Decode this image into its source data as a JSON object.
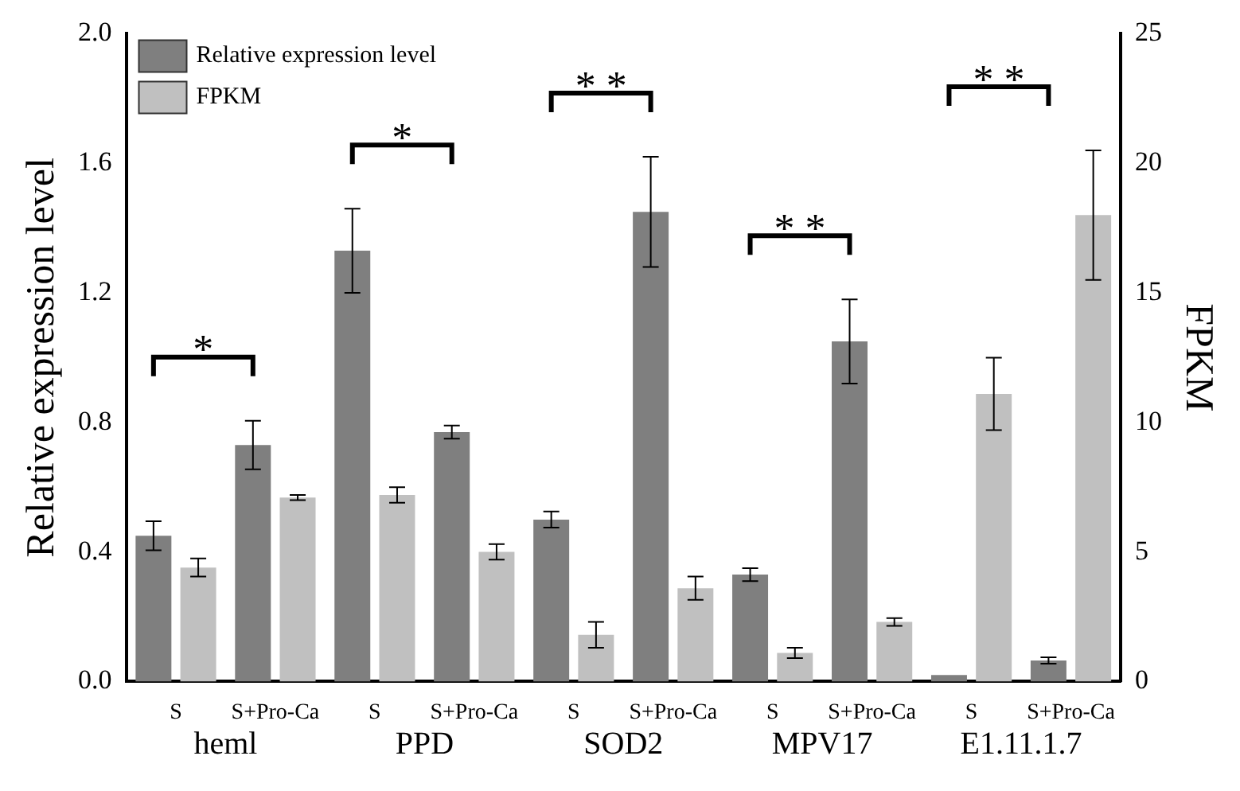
{
  "chart_data": {
    "type": "bar",
    "ylabel": "Relative expression level",
    "y2label": "FPKM",
    "categories": [
      "S",
      "S+Pro-Ca",
      "S",
      "S+Pro-Ca",
      "S",
      "S+Pro-Ca",
      "S",
      "S+Pro-Ca",
      "S",
      "S+Pro-Ca"
    ],
    "series": [
      {
        "name": "Relative expression level",
        "color": "#7f7f7f",
        "values": [
          0.45,
          0.73,
          1.33,
          0.77,
          0.5,
          1.45,
          0.33,
          1.05,
          0.02,
          0.065
        ],
        "errors": [
          0.045,
          0.075,
          0.13,
          0.02,
          0.025,
          0.17,
          0.02,
          0.13,
          null,
          0.01
        ]
      },
      {
        "name": "FPKM",
        "color": "#c0c0c0",
        "axis": "y2",
        "values": [
          4.4,
          7.1,
          7.2,
          5.0,
          1.8,
          3.6,
          1.1,
          2.3,
          11.1,
          18.0
        ],
        "errors": [
          0.35,
          0.1,
          0.3,
          0.3,
          0.5,
          0.45,
          0.2,
          0.15,
          1.4,
          2.5
        ]
      }
    ],
    "ylim": [
      0,
      2.0
    ],
    "yticks": [
      {
        "value": 0,
        "label": "0.0"
      },
      {
        "value": 0.4,
        "label": "0.4"
      },
      {
        "value": 0.8,
        "label": "0.8"
      },
      {
        "value": 1.2,
        "label": "1.2"
      },
      {
        "value": 1.6,
        "label": "1.6"
      },
      {
        "value": 2.0,
        "label": "2.0"
      }
    ],
    "y2lim": [
      0,
      25
    ],
    "y2ticks": [
      0,
      5,
      10,
      15,
      20,
      25
    ],
    "annotations": [
      "heml",
      "PPD",
      "SOD2",
      "MPV17",
      "E1.11.1.7",
      "*",
      "*",
      "* *",
      "* *",
      "* *"
    ],
    "legend": "top left",
    "grid": false
  }
}
